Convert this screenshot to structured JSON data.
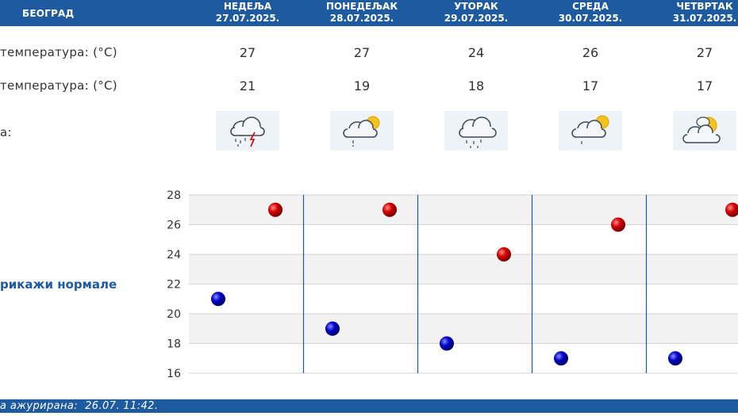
{
  "header": {
    "city": "БЕОГРАД",
    "days": [
      {
        "name": "НЕДЕЉА",
        "date": "27.07.2025."
      },
      {
        "name": "ПОНЕДЕЉАК",
        "date": "28.07.2025."
      },
      {
        "name": "УТОРАК",
        "date": "29.07.2025."
      },
      {
        "name": "СРЕДА",
        "date": "30.07.2025."
      },
      {
        "name": "ЧЕТВРТАК",
        "date": "31.07.2025."
      }
    ]
  },
  "rows": {
    "max_label": "температура: (°C)",
    "min_label": "температура: (°C)",
    "weather_label": "а:",
    "max_values": [
      "27",
      "27",
      "24",
      "26",
      "27"
    ],
    "min_values": [
      "21",
      "19",
      "18",
      "17",
      "17"
    ],
    "icons": [
      "thunderstorm-icon",
      "partly-cloudy-rain-icon",
      "rain-cloud-icon",
      "partly-cloudy-rain-icon",
      "sun-behind-clouds-icon"
    ]
  },
  "norm_link": "рикажи нормале",
  "footer": {
    "text": "а ажурирана:  26.07. 11:42."
  },
  "colors": {
    "header_bg": "#1e5aa0",
    "max_point": "#cc0000",
    "min_point": "#0000bb",
    "divider": "#1e5aa0"
  },
  "chart_data": {
    "type": "scatter",
    "title": "",
    "xlabel": "",
    "ylabel": "",
    "ylim": [
      16,
      28
    ],
    "yticks": [
      "28",
      "26",
      "24",
      "22",
      "20",
      "18",
      "16"
    ],
    "grid": true,
    "categories": [
      "НЕДЕЉА",
      "ПОНЕДЕЉАК",
      "УТОРАК",
      "СРЕДА",
      "ЧЕТВРТАК"
    ],
    "series": [
      {
        "values": [
          27,
          27,
          24,
          26,
          27
        ]
      },
      {
        "values": [
          21,
          19,
          18,
          17,
          17
        ]
      }
    ]
  }
}
